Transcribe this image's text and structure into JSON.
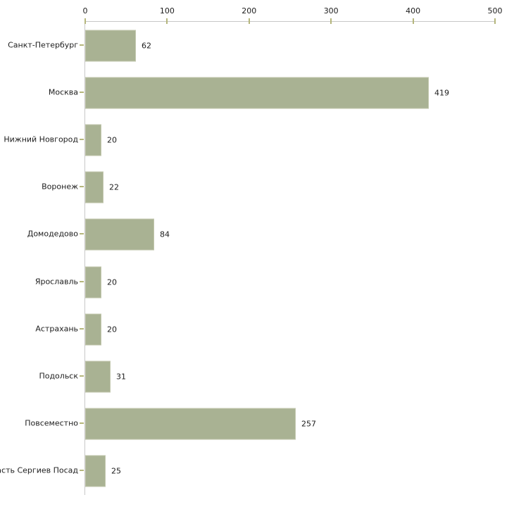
{
  "chart_data": {
    "type": "bar",
    "orientation": "horizontal",
    "title": "",
    "xlabel": "",
    "ylabel": "",
    "categories": [
      "Санкт-Петербург",
      "Москва",
      "Нижний Новгород",
      "Воронеж",
      "Домодедово",
      "Ярославль",
      "Астрахань",
      "Подольск",
      "Повсеместно",
      "ласть Сергиев Посад"
    ],
    "values": [
      62,
      419,
      20,
      22,
      84,
      20,
      20,
      31,
      257,
      25
    ],
    "value_labels": [
      "62",
      "419",
      "20",
      "22",
      "84",
      "20",
      "20",
      "31",
      "257",
      "25"
    ],
    "xlim": [
      0,
      500
    ],
    "x_ticks": [
      0,
      100,
      200,
      300,
      400,
      500
    ],
    "x_tick_labels": [
      "0",
      "100",
      "200",
      "300",
      "400",
      "500"
    ],
    "grid": false,
    "legend": null,
    "layout_hints": {
      "axis_position": "top",
      "bars_start_at_axis": true
    },
    "colors": {
      "bar_fill": "#a9b293",
      "bar_edge": "#c2c7ad",
      "axis_line": "#c8c8c8",
      "tick_mark": "#b5b67c",
      "text": "#1c1c1c",
      "background": "#ffffff"
    }
  }
}
